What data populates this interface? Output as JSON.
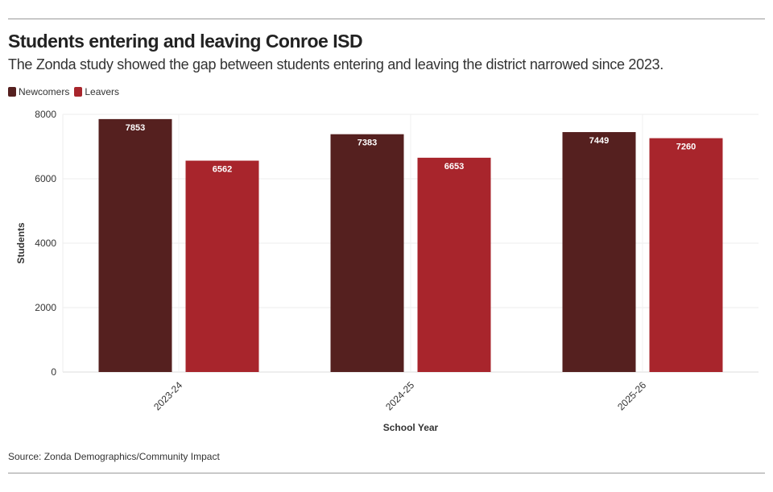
{
  "header": {
    "title": "Students entering and leaving Conroe ISD",
    "subtitle": "The Zonda study showed the gap between students entering and leaving the district narrowed since 2023."
  },
  "footer": {
    "source": "Source: Zonda Demographics/Community Impact"
  },
  "chart_data": {
    "type": "bar",
    "categories": [
      "2023-24",
      "2024-25",
      "2025-26"
    ],
    "series": [
      {
        "name": "Newcomers",
        "color": "#55201f",
        "values": [
          7853,
          7383,
          7449
        ]
      },
      {
        "name": "Leavers",
        "color": "#a8252c",
        "values": [
          6562,
          6653,
          7260
        ]
      }
    ],
    "xlabel": "School Year",
    "ylabel": "Students",
    "ylim": [
      0,
      8000
    ],
    "yticks": [
      "0",
      "2000",
      "4000",
      "6000",
      "8000"
    ],
    "grid": true,
    "legend": "top-left"
  }
}
